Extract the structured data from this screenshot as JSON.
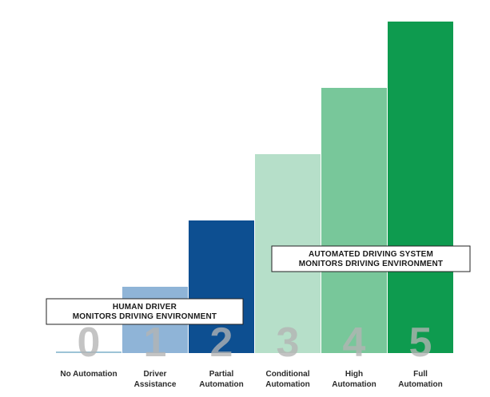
{
  "chart_data": {
    "type": "bar",
    "categories": [
      "0",
      "1",
      "2",
      "3",
      "4",
      "5"
    ],
    "category_names": [
      [
        "No Automation"
      ],
      [
        "Driver",
        "Assistance"
      ],
      [
        "Partial",
        "Automation"
      ],
      [
        "Conditional",
        "Automation"
      ],
      [
        "High",
        "Automation"
      ],
      [
        "Full",
        "Automation"
      ]
    ],
    "values": [
      0,
      1,
      2,
      3,
      4,
      5
    ],
    "ylim": [
      0,
      5
    ],
    "grid": false,
    "legend": "none",
    "colors": [
      "#9dc3d6",
      "#8fb4d7",
      "#0d4f91",
      "#b6dfc9",
      "#78c79a",
      "#0e9b4f"
    ],
    "number_color": "#b3b3b3",
    "callouts": [
      {
        "lines": [
          "HUMAN DRIVER",
          "MONITORS DRIVING ENVIRONMENT"
        ],
        "spans_levels": [
          0,
          2
        ]
      },
      {
        "lines": [
          "AUTOMATED DRIVING SYSTEM",
          "MONITORS DRIVING ENVIRONMENT"
        ],
        "spans_levels": [
          3,
          5
        ]
      }
    ]
  }
}
